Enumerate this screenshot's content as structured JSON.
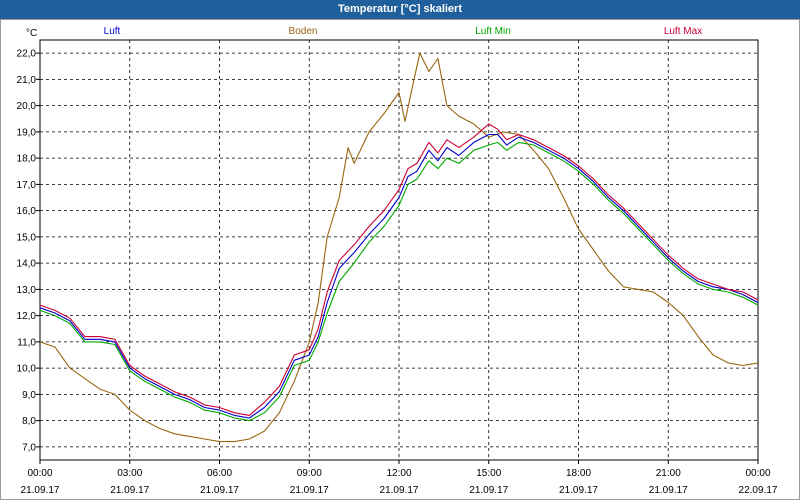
{
  "window": {
    "title": "Temperatur [°C] skaliert"
  },
  "chart_data": {
    "type": "line",
    "title": "Temperatur [°C] skaliert",
    "ylabel": "°C",
    "xlabel": "",
    "ylim": [
      6.5,
      22.5
    ],
    "y_ticks": [
      7.0,
      8.0,
      9.0,
      10.0,
      11.0,
      12.0,
      13.0,
      14.0,
      15.0,
      16.0,
      17.0,
      18.0,
      19.0,
      20.0,
      21.0,
      22.0
    ],
    "y_tick_labels": [
      "7,0",
      "8,0",
      "9,0",
      "10,0",
      "11,0",
      "12,0",
      "13,0",
      "14,0",
      "15,0",
      "16,0",
      "17,0",
      "18,0",
      "19,0",
      "20,0",
      "21,0",
      "22,0"
    ],
    "xlim": [
      0,
      24
    ],
    "x_unit": "hours from 21.09.17 00:00",
    "x_ticks": [
      {
        "x": 0,
        "time": "00:00",
        "date": "21.09.17"
      },
      {
        "x": 3,
        "time": "03:00",
        "date": "21.09.17"
      },
      {
        "x": 6,
        "time": "06:00",
        "date": "21.09.17"
      },
      {
        "x": 9,
        "time": "09:00",
        "date": "21.09.17"
      },
      {
        "x": 12,
        "time": "12:00",
        "date": "21.09.17"
      },
      {
        "x": 15,
        "time": "15:00",
        "date": "21.09.17"
      },
      {
        "x": 18,
        "time": "18:00",
        "date": "21.09.17"
      },
      {
        "x": 21,
        "time": "21:00",
        "date": "21.09.17"
      },
      {
        "x": 24,
        "time": "00:00",
        "date": "22.09.17"
      }
    ],
    "grid": true,
    "legend_placement": "top",
    "series": [
      {
        "name": "Luft",
        "color": "#0000cc",
        "points": [
          [
            0,
            12.3
          ],
          [
            0.5,
            12.1
          ],
          [
            1,
            11.8
          ],
          [
            1.5,
            11.1
          ],
          [
            2,
            11.1
          ],
          [
            2.5,
            11.0
          ],
          [
            3,
            10.0
          ],
          [
            3.5,
            9.6
          ],
          [
            4,
            9.3
          ],
          [
            4.5,
            9.0
          ],
          [
            5,
            8.8
          ],
          [
            5.5,
            8.5
          ],
          [
            6,
            8.4
          ],
          [
            6.5,
            8.2
          ],
          [
            7,
            8.1
          ],
          [
            7.5,
            8.5
          ],
          [
            8,
            9.1
          ],
          [
            8.5,
            10.3
          ],
          [
            9,
            10.5
          ],
          [
            9.3,
            11.2
          ],
          [
            9.6,
            12.5
          ],
          [
            10,
            13.8
          ],
          [
            10.5,
            14.4
          ],
          [
            11,
            15.1
          ],
          [
            11.5,
            15.7
          ],
          [
            12,
            16.5
          ],
          [
            12.3,
            17.3
          ],
          [
            12.6,
            17.5
          ],
          [
            13,
            18.3
          ],
          [
            13.3,
            17.9
          ],
          [
            13.6,
            18.4
          ],
          [
            14,
            18.1
          ],
          [
            14.5,
            18.6
          ],
          [
            15,
            18.9
          ],
          [
            15.3,
            18.9
          ],
          [
            15.6,
            18.5
          ],
          [
            16,
            18.8
          ],
          [
            16.5,
            18.6
          ],
          [
            17,
            18.3
          ],
          [
            17.5,
            18.0
          ],
          [
            18,
            17.6
          ],
          [
            18.5,
            17.1
          ],
          [
            19,
            16.5
          ],
          [
            19.5,
            16.0
          ],
          [
            20,
            15.4
          ],
          [
            20.5,
            14.8
          ],
          [
            21,
            14.2
          ],
          [
            21.5,
            13.7
          ],
          [
            22,
            13.3
          ],
          [
            22.5,
            13.1
          ],
          [
            23,
            13.0
          ],
          [
            23.5,
            12.8
          ],
          [
            24,
            12.5
          ]
        ]
      },
      {
        "name": "Boden",
        "color": "#996611",
        "points": [
          [
            0,
            11.0
          ],
          [
            0.5,
            10.8
          ],
          [
            1,
            10.0
          ],
          [
            1.5,
            9.6
          ],
          [
            2,
            9.2
          ],
          [
            2.5,
            9.0
          ],
          [
            3,
            8.4
          ],
          [
            3.5,
            8.0
          ],
          [
            4,
            7.7
          ],
          [
            4.5,
            7.5
          ],
          [
            5,
            7.4
          ],
          [
            5.5,
            7.3
          ],
          [
            6,
            7.2
          ],
          [
            6.5,
            7.2
          ],
          [
            7,
            7.3
          ],
          [
            7.5,
            7.6
          ],
          [
            8,
            8.3
          ],
          [
            8.5,
            9.5
          ],
          [
            9,
            11.0
          ],
          [
            9.3,
            12.5
          ],
          [
            9.6,
            15.0
          ],
          [
            10,
            16.5
          ],
          [
            10.3,
            18.4
          ],
          [
            10.5,
            17.8
          ],
          [
            11,
            19.0
          ],
          [
            11.5,
            19.7
          ],
          [
            12,
            20.5
          ],
          [
            12.2,
            19.4
          ],
          [
            12.5,
            21.0
          ],
          [
            12.7,
            22.0
          ],
          [
            13,
            21.3
          ],
          [
            13.3,
            21.8
          ],
          [
            13.6,
            20.0
          ],
          [
            14,
            19.6
          ],
          [
            14.5,
            19.3
          ],
          [
            15,
            18.8
          ],
          [
            15.5,
            19.0
          ],
          [
            16,
            18.9
          ],
          [
            16.5,
            18.3
          ],
          [
            17,
            17.6
          ],
          [
            17.5,
            16.5
          ],
          [
            18,
            15.3
          ],
          [
            18.5,
            14.5
          ],
          [
            19,
            13.7
          ],
          [
            19.5,
            13.1
          ],
          [
            20,
            13.0
          ],
          [
            20.5,
            12.9
          ],
          [
            21,
            12.5
          ],
          [
            21.5,
            12.0
          ],
          [
            22,
            11.2
          ],
          [
            22.5,
            10.5
          ],
          [
            23,
            10.2
          ],
          [
            23.5,
            10.1
          ],
          [
            24,
            10.2
          ]
        ]
      },
      {
        "name": "Luft Min",
        "color": "#00aa00",
        "points": [
          [
            0,
            12.2
          ],
          [
            0.5,
            12.0
          ],
          [
            1,
            11.7
          ],
          [
            1.5,
            11.0
          ],
          [
            2,
            11.0
          ],
          [
            2.5,
            10.9
          ],
          [
            3,
            9.9
          ],
          [
            3.5,
            9.5
          ],
          [
            4,
            9.2
          ],
          [
            4.5,
            8.9
          ],
          [
            5,
            8.7
          ],
          [
            5.5,
            8.4
          ],
          [
            6,
            8.3
          ],
          [
            6.5,
            8.1
          ],
          [
            7,
            8.0
          ],
          [
            7.5,
            8.3
          ],
          [
            8,
            8.9
          ],
          [
            8.5,
            10.1
          ],
          [
            9,
            10.3
          ],
          [
            9.3,
            11.0
          ],
          [
            9.6,
            12.1
          ],
          [
            10,
            13.3
          ],
          [
            10.5,
            14.0
          ],
          [
            11,
            14.8
          ],
          [
            11.5,
            15.4
          ],
          [
            12,
            16.2
          ],
          [
            12.3,
            17.0
          ],
          [
            12.6,
            17.2
          ],
          [
            13,
            17.9
          ],
          [
            13.3,
            17.6
          ],
          [
            13.6,
            18.0
          ],
          [
            14,
            17.8
          ],
          [
            14.5,
            18.3
          ],
          [
            15,
            18.5
          ],
          [
            15.3,
            18.6
          ],
          [
            15.6,
            18.3
          ],
          [
            16,
            18.6
          ],
          [
            16.5,
            18.5
          ],
          [
            17,
            18.2
          ],
          [
            17.5,
            17.9
          ],
          [
            18,
            17.5
          ],
          [
            18.5,
            17.0
          ],
          [
            19,
            16.4
          ],
          [
            19.5,
            15.9
          ],
          [
            20,
            15.3
          ],
          [
            20.5,
            14.7
          ],
          [
            21,
            14.1
          ],
          [
            21.5,
            13.6
          ],
          [
            22,
            13.2
          ],
          [
            22.5,
            13.0
          ],
          [
            23,
            12.9
          ],
          [
            23.5,
            12.7
          ],
          [
            24,
            12.4
          ]
        ]
      },
      {
        "name": "Luft Max",
        "color": "#cc0033",
        "points": [
          [
            0,
            12.4
          ],
          [
            0.5,
            12.2
          ],
          [
            1,
            11.9
          ],
          [
            1.5,
            11.2
          ],
          [
            2,
            11.2
          ],
          [
            2.5,
            11.1
          ],
          [
            3,
            10.1
          ],
          [
            3.5,
            9.7
          ],
          [
            4,
            9.4
          ],
          [
            4.5,
            9.1
          ],
          [
            5,
            8.9
          ],
          [
            5.5,
            8.6
          ],
          [
            6,
            8.5
          ],
          [
            6.5,
            8.3
          ],
          [
            7,
            8.2
          ],
          [
            7.5,
            8.7
          ],
          [
            8,
            9.3
          ],
          [
            8.5,
            10.5
          ],
          [
            9,
            10.7
          ],
          [
            9.3,
            11.5
          ],
          [
            9.6,
            12.9
          ],
          [
            10,
            14.1
          ],
          [
            10.5,
            14.7
          ],
          [
            11,
            15.4
          ],
          [
            11.5,
            16.0
          ],
          [
            12,
            16.8
          ],
          [
            12.3,
            17.6
          ],
          [
            12.6,
            17.8
          ],
          [
            13,
            18.6
          ],
          [
            13.3,
            18.2
          ],
          [
            13.6,
            18.7
          ],
          [
            14,
            18.4
          ],
          [
            14.5,
            18.8
          ],
          [
            15,
            19.3
          ],
          [
            15.3,
            19.1
          ],
          [
            15.6,
            18.7
          ],
          [
            16,
            18.9
          ],
          [
            16.5,
            18.7
          ],
          [
            17,
            18.4
          ],
          [
            17.5,
            18.1
          ],
          [
            18,
            17.7
          ],
          [
            18.5,
            17.2
          ],
          [
            19,
            16.6
          ],
          [
            19.5,
            16.1
          ],
          [
            20,
            15.5
          ],
          [
            20.5,
            14.9
          ],
          [
            21,
            14.3
          ],
          [
            21.5,
            13.8
          ],
          [
            22,
            13.4
          ],
          [
            22.5,
            13.2
          ],
          [
            23,
            13.0
          ],
          [
            23.5,
            12.9
          ],
          [
            24,
            12.6
          ]
        ]
      }
    ]
  }
}
